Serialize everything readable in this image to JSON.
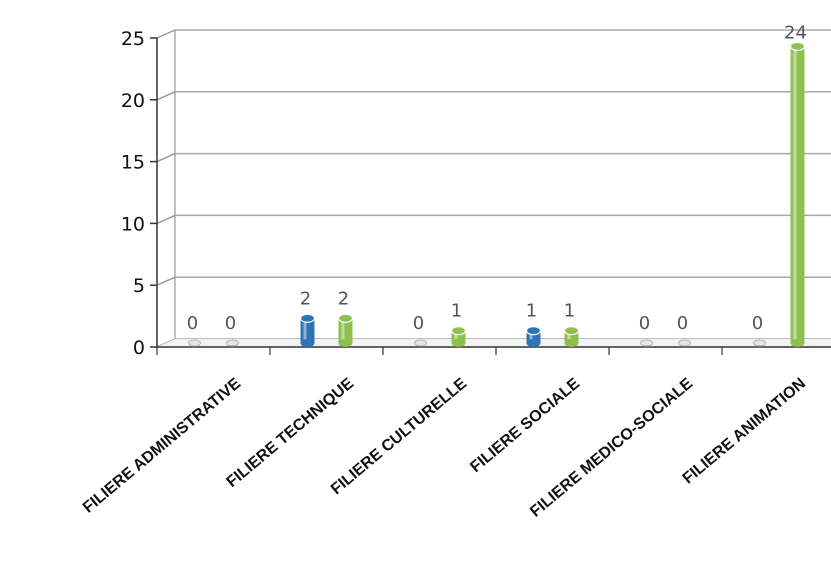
{
  "chart_data": {
    "type": "bar",
    "categories": [
      "FILIERE ADMINISTRATIVE",
      "FILIERE TECHNIQUE",
      "FILIERE CULTURELLE",
      "FILIERE SOCIALE",
      "FILIERE MEDICO-SOCIALE",
      "FILIERE ANIMATION"
    ],
    "series": [
      {
        "values": [
          0,
          2,
          0,
          1,
          0,
          0
        ],
        "color": "#2e74b5"
      },
      {
        "values": [
          0,
          2,
          1,
          1,
          0,
          24
        ],
        "color": "#8dc04f"
      }
    ],
    "ylim": [
      0,
      25
    ],
    "yticks": [
      0,
      5,
      10,
      15,
      20,
      25
    ],
    "grid": true,
    "style": "3d-cylinder"
  }
}
